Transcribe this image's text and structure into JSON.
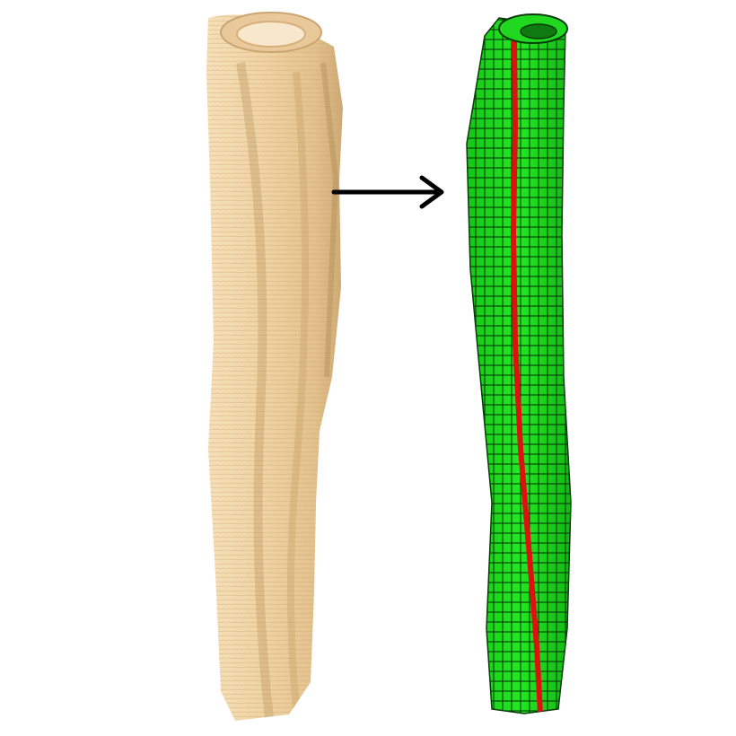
{
  "figure": {
    "left_model": {
      "kind": "segmented-bone-surface",
      "icon": "textured-tube-icon",
      "color": "#EFD2A2",
      "shade_color": "#C9A875",
      "highlight_color": "#F8E6C6"
    },
    "arrow": {
      "icon": "arrow-right-icon",
      "color": "#000000"
    },
    "right_model": {
      "kind": "hexahedral-mesh",
      "icon": "mesh-tube-icon",
      "color": "#1FE01F",
      "mesh_line_color": "#0A3A0A",
      "seam_color": "#E01010"
    }
  }
}
